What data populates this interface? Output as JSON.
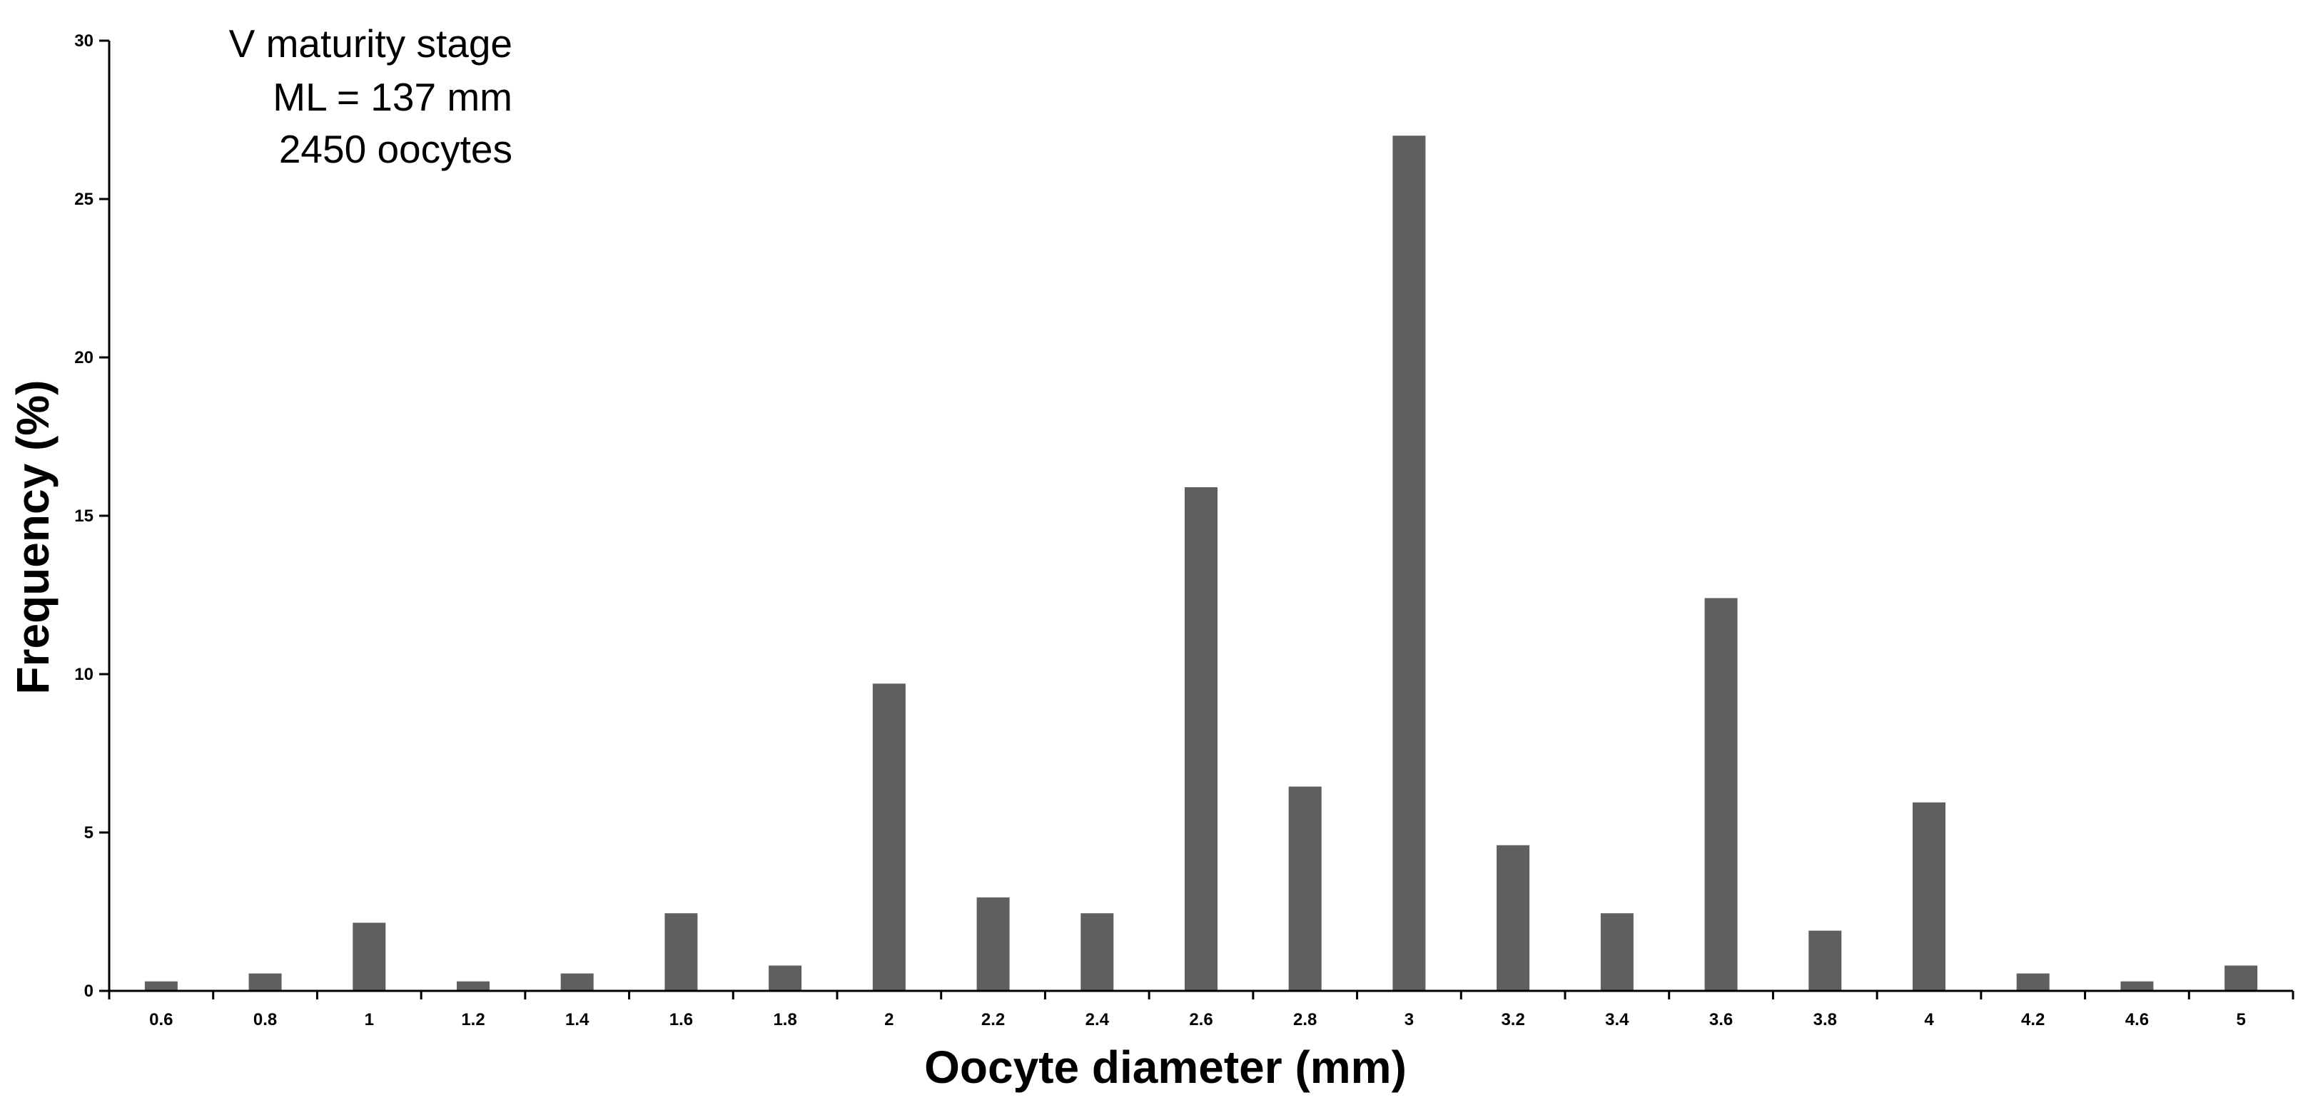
{
  "chart_data": {
    "type": "bar",
    "title": "",
    "xlabel": "Oocyte diameter (mm)",
    "ylabel": "Frequency (%)",
    "ylim": [
      0,
      30
    ],
    "yticks": [
      "0",
      "5",
      "10",
      "15",
      "20",
      "25",
      "30"
    ],
    "categories": [
      "0.6",
      "0.8",
      "1",
      "1.2",
      "1.4",
      "1.6",
      "1.8",
      "2",
      "2.2",
      "2.4",
      "2.6",
      "2.8",
      "3",
      "3.2",
      "3.4",
      "3.6",
      "3.8",
      "4",
      "4.2",
      "4.6",
      "5"
    ],
    "values": [
      0.3,
      0.55,
      2.15,
      0.3,
      0.55,
      2.45,
      0.8,
      9.7,
      2.95,
      2.45,
      15.9,
      6.45,
      27.0,
      4.6,
      2.45,
      12.4,
      1.9,
      5.95,
      0.55,
      0.3,
      0.8
    ],
    "bar_color": "#5f5f5f",
    "grid": false,
    "legend": "none",
    "annotations": [
      "V  maturity stage",
      "ML = 137 mm",
      "2450 oocytes"
    ]
  }
}
